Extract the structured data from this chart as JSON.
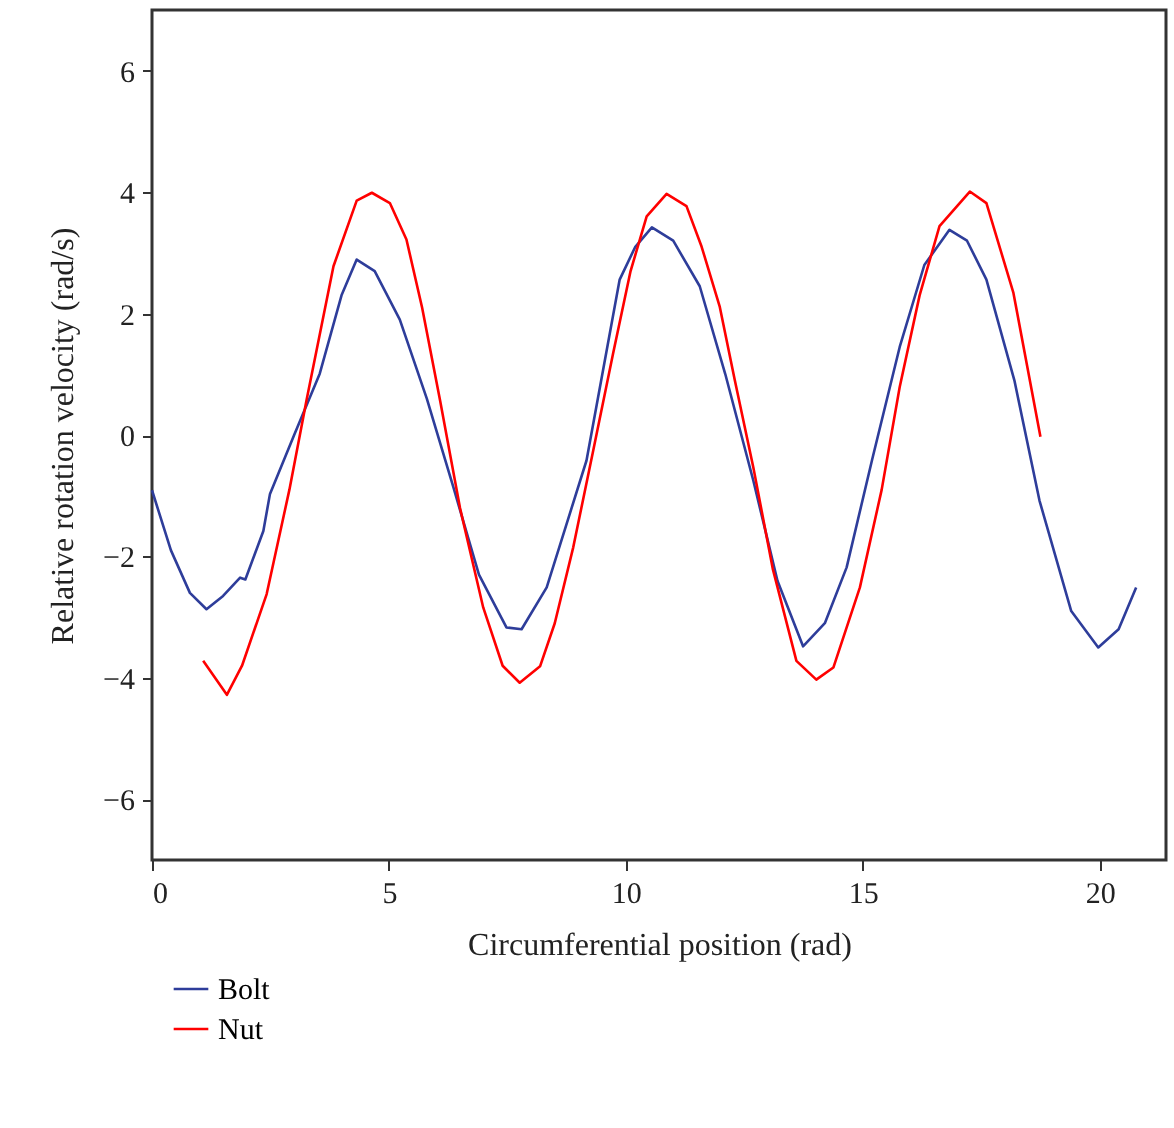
{
  "chart_data": {
    "type": "line",
    "xlabel": "Circumferential position (rad)",
    "ylabel": "Relative rotation velocity (rad/s)",
    "xlim": [
      0,
      21.4
    ],
    "ylim": [
      -7,
      7
    ],
    "xticks": [
      0,
      5,
      10,
      15,
      20
    ],
    "yticks": [
      -6,
      -4,
      -2,
      0,
      2,
      4,
      6
    ],
    "grid": false,
    "legend": "bottom",
    "line_style": "solid",
    "marker": "none",
    "series": [
      {
        "name": "Bolt",
        "color": "#2e3d9a",
        "x": [
          0,
          0.4,
          0.8,
          1.15,
          1.5,
          1.86,
          1.97,
          2.35,
          2.49,
          3.0,
          3.54,
          4.0,
          4.32,
          4.7,
          5.23,
          5.8,
          6.36,
          6.9,
          7.48,
          7.8,
          8.33,
          9.17,
          9.87,
          10.2,
          10.55,
          11.0,
          11.56,
          12.1,
          12.69,
          13.2,
          13.74,
          14.2,
          14.66,
          15.2,
          15.78,
          16.3,
          16.83,
          17.2,
          17.61,
          18.2,
          18.73,
          19.4,
          19.97,
          20.4,
          20.77
        ],
        "values": [
          -0.91,
          -1.9,
          -2.6,
          -2.87,
          -2.65,
          -2.35,
          -2.38,
          -1.58,
          -0.97,
          0.0,
          1.01,
          2.3,
          2.89,
          2.7,
          1.9,
          0.6,
          -0.86,
          -2.3,
          -3.17,
          -3.2,
          -2.51,
          -0.42,
          2.56,
          3.1,
          3.42,
          3.2,
          2.45,
          1.0,
          -0.75,
          -2.4,
          -3.48,
          -3.1,
          -2.18,
          -0.4,
          1.45,
          2.8,
          3.38,
          3.2,
          2.56,
          0.9,
          -1.08,
          -2.9,
          -3.5,
          -3.2,
          -2.51
        ]
      },
      {
        "name": "Nut",
        "color": "#ff0000",
        "x": [
          1.08,
          1.58,
          1.9,
          2.42,
          2.9,
          3.26,
          3.83,
          4.32,
          4.64,
          5.02,
          5.37,
          5.7,
          6.08,
          6.5,
          6.99,
          7.4,
          7.76,
          8.19,
          8.5,
          8.89,
          9.3,
          9.73,
          10.1,
          10.44,
          10.86,
          11.28,
          11.6,
          11.98,
          12.3,
          12.69,
          13.1,
          13.6,
          14.02,
          14.38,
          14.94,
          15.4,
          15.78,
          16.2,
          16.62,
          17.26,
          17.61,
          18.18,
          18.75
        ],
        "values": [
          -3.72,
          -4.28,
          -3.8,
          -2.62,
          -0.9,
          0.57,
          2.78,
          3.86,
          3.99,
          3.82,
          3.22,
          2.1,
          0.57,
          -1.2,
          -2.84,
          -3.8,
          -4.08,
          -3.81,
          -3.1,
          -1.85,
          -0.3,
          1.34,
          2.7,
          3.6,
          3.97,
          3.77,
          3.1,
          2.12,
          0.9,
          -0.53,
          -2.2,
          -3.72,
          -4.03,
          -3.83,
          -2.51,
          -0.9,
          0.79,
          2.3,
          3.44,
          4.01,
          3.82,
          2.34,
          -0.03
        ]
      }
    ]
  }
}
